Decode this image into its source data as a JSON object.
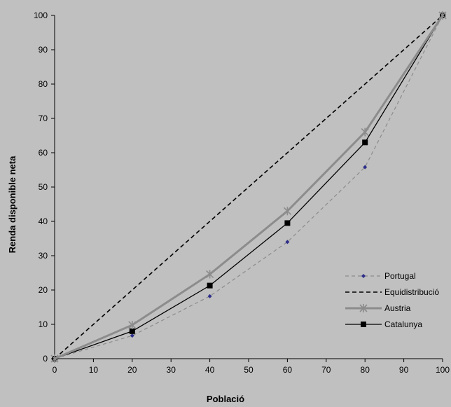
{
  "chart_data": {
    "type": "line",
    "xlabel": "Població",
    "ylabel": "Renda disponible neta",
    "xlim": [
      0,
      100
    ],
    "ylim": [
      0,
      100
    ],
    "xticks": [
      0,
      10,
      20,
      30,
      40,
      50,
      60,
      70,
      80,
      90,
      100
    ],
    "yticks": [
      0,
      10,
      20,
      30,
      40,
      50,
      60,
      70,
      80,
      90,
      100
    ],
    "grid": false,
    "legend_position": "bottom-right",
    "series": [
      {
        "name": "Portugal",
        "x": [
          0,
          20,
          40,
          60,
          80,
          100
        ],
        "values": [
          0,
          6.7,
          18.2,
          34,
          55.8,
          100
        ],
        "color": "#8c8c8c",
        "marker_color": "#2e2e8a",
        "style": "dashed",
        "marker": "diamond"
      },
      {
        "name": "Equidistribució",
        "x": [
          0,
          20,
          40,
          60,
          80,
          100
        ],
        "values": [
          0,
          20,
          40,
          60,
          80,
          100
        ],
        "color": "#000000",
        "style": "dashed",
        "marker": "none"
      },
      {
        "name": "Austria",
        "x": [
          0,
          20,
          40,
          60,
          80,
          100
        ],
        "values": [
          0,
          9.8,
          24.6,
          43,
          66,
          100
        ],
        "color": "#8c8c8c",
        "style": "solid-thick",
        "marker": "star"
      },
      {
        "name": "Catalunya",
        "x": [
          0,
          20,
          40,
          60,
          80,
          100
        ],
        "values": [
          0,
          8,
          21.3,
          39.5,
          63,
          100
        ],
        "color": "#000000",
        "style": "solid",
        "marker": "square"
      }
    ]
  }
}
